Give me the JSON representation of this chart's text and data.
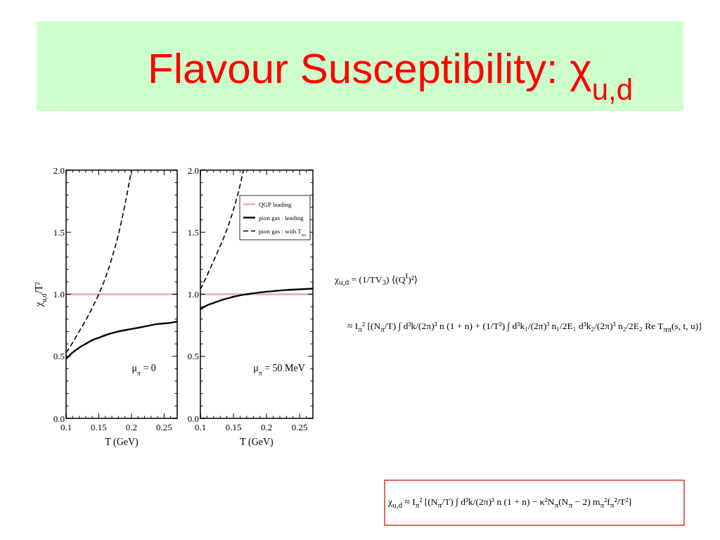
{
  "chart_data": [
    {
      "type": "line",
      "title": "Flavour Susceptibility: χ$_{u,d}$",
      "xlabel": "T (GeV)",
      "ylabel": "χ$_{u,d}$/T²",
      "annotations": [
        "μ$_{π}$ = 0"
      ],
      "xlim": [
        0.1,
        0.27
      ],
      "ylim": [
        0,
        2
      ],
      "xticks": [
        0.1,
        {
          "value": 0.11,
          "label": null
        },
        {
          "value": 0.12,
          "label": null
        },
        {
          "value": 0.13,
          "label": null
        },
        {
          "value": 0.14,
          "label": null
        },
        0.15,
        {
          "value": 0.16,
          "label": null
        },
        {
          "value": 0.17,
          "label": null
        },
        {
          "value": 0.18,
          "label": null
        },
        {
          "value": 0.19,
          "label": null
        },
        0.2,
        {
          "value": 0.21,
          "label": null
        },
        {
          "value": 0.22,
          "label": null
        },
        {
          "value": 0.23,
          "label": null
        },
        {
          "value": 0.24,
          "label": null
        },
        0.25,
        {
          "value": 0.26,
          "label": null
        }
      ],
      "yticks": [
        {
          "value": 0,
          "label": "0.0"
        },
        {
          "value": 0.1,
          "label": null
        },
        {
          "value": 0.2,
          "label": null
        },
        {
          "value": 0.3,
          "label": null
        },
        {
          "value": 0.4,
          "label": null
        },
        {
          "value": 0.5,
          "label": "0.5"
        },
        {
          "value": 0.6,
          "label": null
        },
        {
          "value": 0.7,
          "label": null
        },
        {
          "value": 0.8,
          "label": null
        },
        {
          "value": 0.9,
          "label": null
        },
        {
          "value": 1,
          "label": "1.0"
        },
        {
          "value": 1.1,
          "label": null
        },
        {
          "value": 1.2,
          "label": null
        },
        {
          "value": 1.3,
          "label": null
        },
        {
          "value": 1.4,
          "label": null
        },
        {
          "value": 1.5,
          "label": "1.5"
        },
        {
          "value": 1.6,
          "label": null
        },
        {
          "value": 1.7,
          "label": null
        },
        {
          "value": 1.8,
          "label": null
        },
        {
          "value": 1.9,
          "label": null
        },
        {
          "value": 2,
          "label": "2.0"
        }
      ],
      "series": [
        {
          "color": "#f4a3a3",
          "line_style": "solid",
          "x": [
            0.1,
            0.27
          ],
          "values": [
            1,
            1
          ]
        },
        {
          "color": "#000000",
          "line_style": "solid",
          "x": [
            0.1,
            0.11,
            0.12,
            0.13,
            0.14,
            0.15,
            0.16,
            0.18,
            0.2,
            0.22,
            0.24,
            0.26,
            0.27
          ],
          "values": [
            0.48,
            0.53,
            0.57,
            0.6,
            0.63,
            0.65,
            0.67,
            0.7,
            0.72,
            0.74,
            0.76,
            0.77,
            0.78
          ]
        },
        {
          "color": "#000000",
          "line_style": "dashed",
          "x": [
            0.1,
            0.11,
            0.12,
            0.13,
            0.14,
            0.15,
            0.16,
            0.17,
            0.18,
            0.19,
            0.2
          ],
          "values": [
            0.53,
            0.61,
            0.7,
            0.79,
            0.89,
            1,
            1.13,
            1.29,
            1.48,
            1.72,
            2
          ]
        }
      ]
    },
    {
      "type": "line",
      "xlabel": "T (GeV)",
      "annotations": [
        "μ$_{π}$ = 50 MeV"
      ],
      "xlim": [
        0.1,
        0.27
      ],
      "ylim": [
        0,
        2
      ],
      "legend": "top right",
      "xticks": [
        0.1,
        {
          "value": 0.11,
          "label": null
        },
        {
          "value": 0.12,
          "label": null
        },
        {
          "value": 0.13,
          "label": null
        },
        {
          "value": 0.14,
          "label": null
        },
        0.15,
        {
          "value": 0.16,
          "label": null
        },
        {
          "value": 0.17,
          "label": null
        },
        {
          "value": 0.18,
          "label": null
        },
        {
          "value": 0.19,
          "label": null
        },
        0.2,
        {
          "value": 0.21,
          "label": null
        },
        {
          "value": 0.22,
          "label": null
        },
        {
          "value": 0.23,
          "label": null
        },
        {
          "value": 0.24,
          "label": null
        },
        0.25,
        {
          "value": 0.26,
          "label": null
        }
      ],
      "yticks": [
        {
          "value": 0,
          "label": "0.0"
        },
        {
          "value": 0.1,
          "label": null
        },
        {
          "value": 0.2,
          "label": null
        },
        {
          "value": 0.3,
          "label": null
        },
        {
          "value": 0.4,
          "label": null
        },
        {
          "value": 0.5,
          "label": "0.5"
        },
        {
          "value": 0.6,
          "label": null
        },
        {
          "value": 0.7,
          "label": null
        },
        {
          "value": 0.8,
          "label": null
        },
        {
          "value": 0.9,
          "label": null
        },
        {
          "value": 1,
          "label": "1.0"
        },
        {
          "value": 1.1,
          "label": null
        },
        {
          "value": 1.2,
          "label": null
        },
        {
          "value": 1.3,
          "label": null
        },
        {
          "value": 1.4,
          "label": null
        },
        {
          "value": 1.5,
          "label": "1.5"
        },
        {
          "value": 1.6,
          "label": null
        },
        {
          "value": 1.7,
          "label": null
        },
        {
          "value": 1.8,
          "label": null
        },
        {
          "value": 1.9,
          "label": null
        },
        {
          "value": 2,
          "label": "2.0"
        }
      ],
      "series": [
        {
          "name": "QGP leading",
          "color": "#f4a3a3",
          "line_style": "solid",
          "x": [
            0.1,
            0.27
          ],
          "values": [
            1,
            1
          ]
        },
        {
          "name": "pion gas : leading",
          "color": "#000000",
          "line_style": "solid",
          "x": [
            0.1,
            0.11,
            0.12,
            0.13,
            0.14,
            0.15,
            0.17,
            0.19,
            0.21,
            0.23,
            0.25,
            0.27
          ],
          "values": [
            0.88,
            0.91,
            0.93,
            0.95,
            0.965,
            0.98,
            1,
            1.015,
            1.025,
            1.035,
            1.04,
            1.045
          ]
        },
        {
          "name": "pion gas : with T$_{ππ}$",
          "color": "#000000",
          "line_style": "dashed",
          "x": [
            0.1,
            0.11,
            0.12,
            0.13,
            0.14,
            0.15,
            0.16,
            0.165
          ],
          "values": [
            1.04,
            1.15,
            1.27,
            1.39,
            1.52,
            1.68,
            1.88,
            2
          ]
        }
      ]
    },
    {
      "type": "other",
      "annotations": [
        "χ$_{u,d}$ = (1/TV$_{3}$) ⟨(Q$^{I}$)²⟩",
        "≈ I$_{π}$² [(N$_{π}$/T) ∫ d³k/(2π)³ n (1 + n) + (1/T²) ∫ d³k₁/(2π)³ n₁/2E₁ d³k₂/(2π)³ n₂/2E₂ Re T$_{ππ}$(s, t, u)]",
        "χ$_{u,d}$ ≈ I$_{π}$² [(N$_{π}$/T) ∫ d³k/(2π)³ n (1 + n) − κ²N$_{π}$(N$_{π}$ − 2) m$_{π}$²f$_{π}$²/T²]"
      ]
    }
  ]
}
